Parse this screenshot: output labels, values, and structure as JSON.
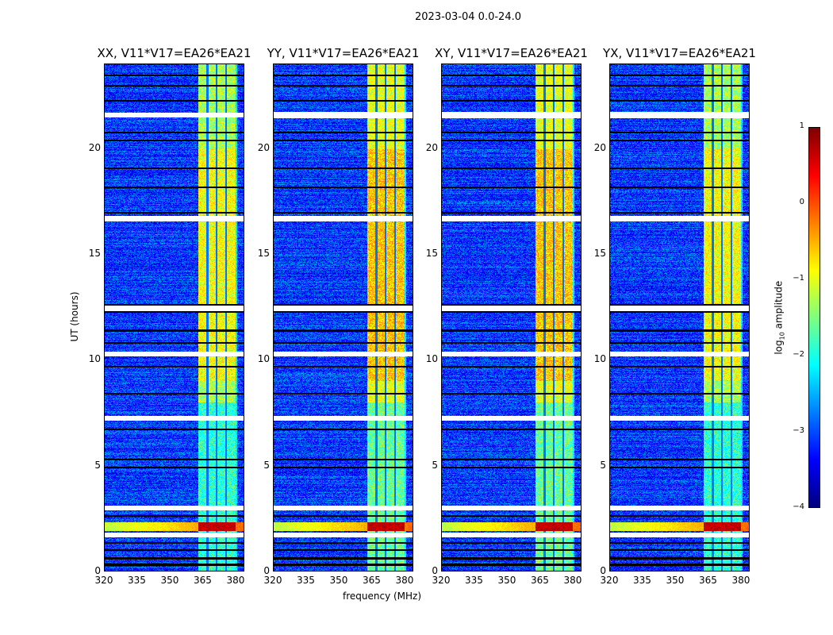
{
  "chart_data": {
    "type": "heatmap",
    "title": "2023-03-04 0.0-24.0",
    "xlabel": "frequency (MHz)",
    "ylabel": "UT (hours)",
    "xlim": [
      320,
      384
    ],
    "ylim": [
      0,
      24
    ],
    "xticks": [
      "320",
      "335",
      "350",
      "365",
      "380"
    ],
    "yticks": [
      "0",
      "5",
      "10",
      "15",
      "20"
    ],
    "panels": [
      {
        "title": "XX, V11*V17=EA26*EA21"
      },
      {
        "title": "YY, V11*V17=EA26*EA21"
      },
      {
        "title": "XY, V11*V17=EA26*EA21"
      },
      {
        "title": "YX, V11*V17=EA26*EA21"
      }
    ],
    "colorbar": {
      "label": "log",
      "label_sub": "10",
      "label_tail": " amplitude",
      "range": [
        -4,
        1
      ],
      "ticks": [
        "1",
        "0",
        "−1",
        "−2",
        "−3",
        "−4"
      ],
      "colormap": "jet"
    },
    "features": {
      "background_log_amp": -3.0,
      "rfi_band_mhz": [
        363,
        380
      ],
      "rfi_band_log_amp": -1.3,
      "rfi_event_ut": [
        1.9,
        2.3
      ],
      "rfi_event_log_amp": 0.5,
      "flagged_ut": [
        1.7,
        3.0,
        7.25,
        10.3,
        12.45,
        16.7,
        21.6
      ]
    }
  }
}
